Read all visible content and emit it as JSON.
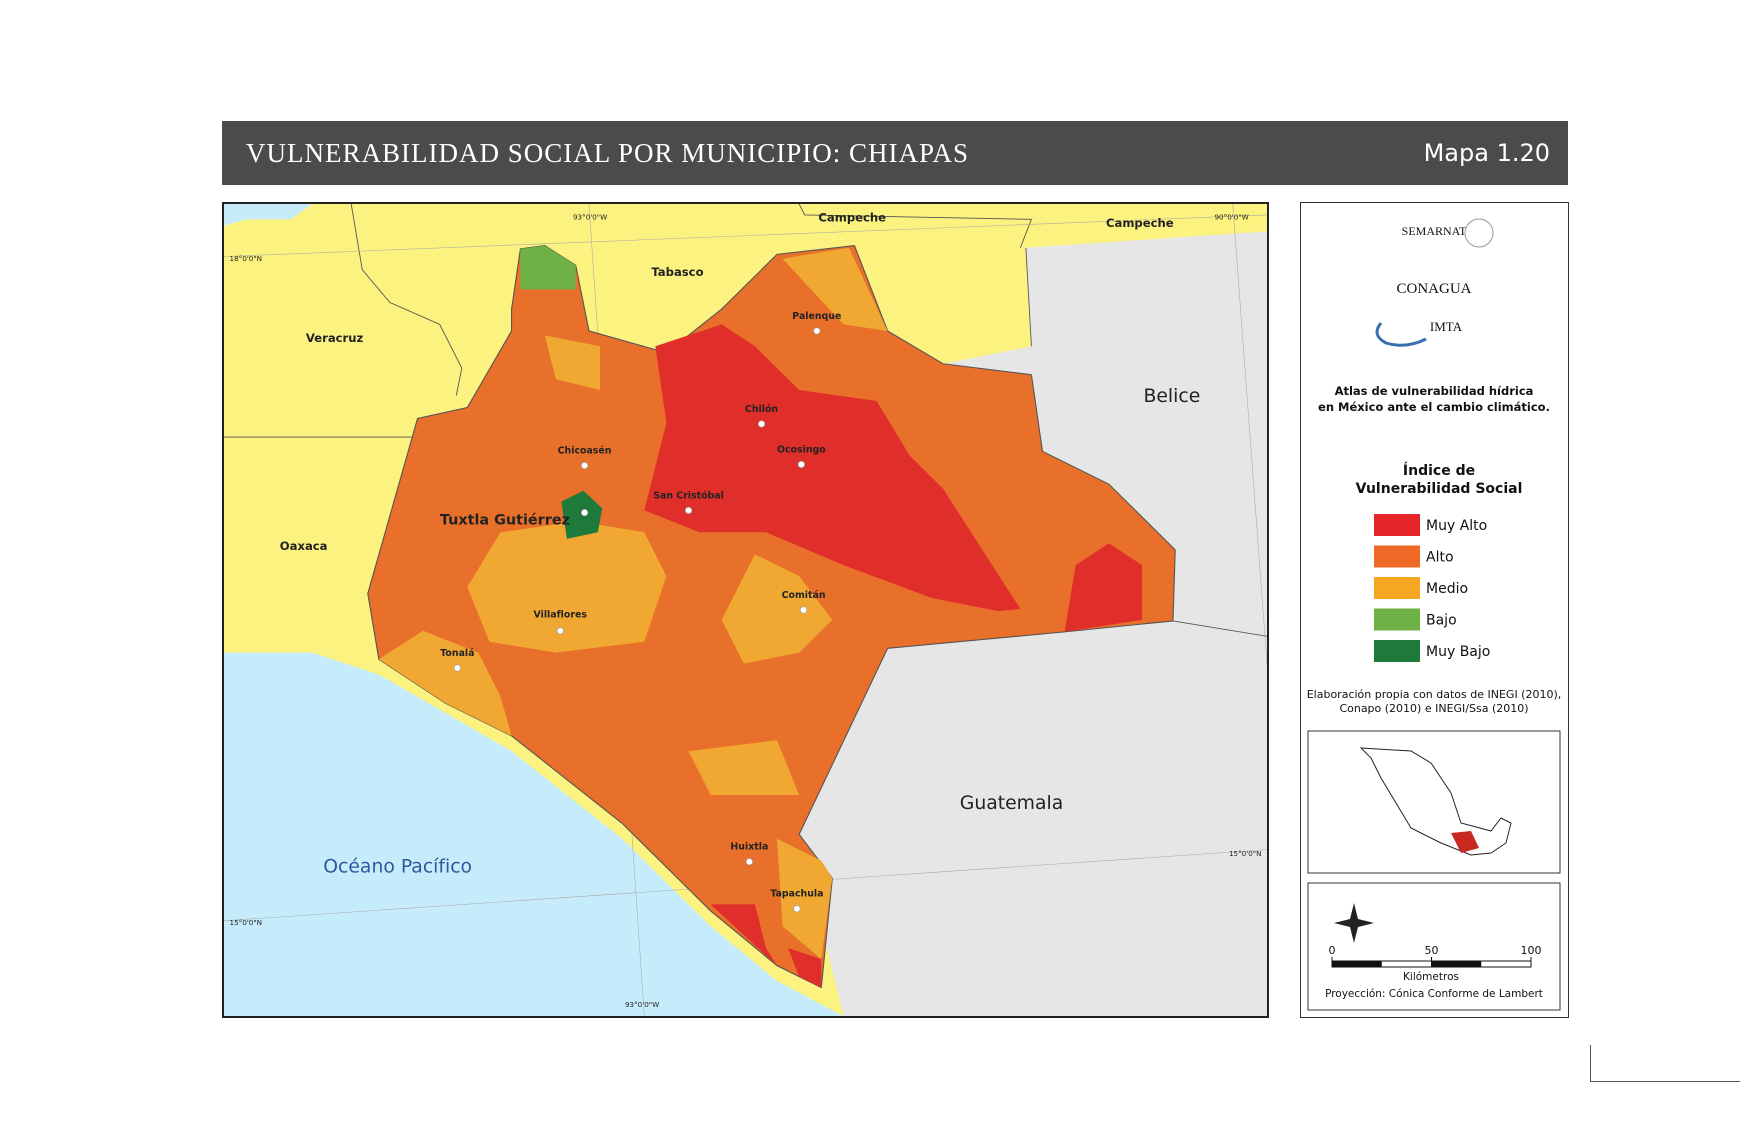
{
  "header": {
    "title": "VULNERABILIDAD SOCIAL POR MUNICIPIO: CHIAPAS",
    "map_number": "Mapa 1.20"
  },
  "map": {
    "regions": [
      "Campeche",
      "Campeche",
      "Tabasco",
      "Veracruz",
      "Belice",
      "Oaxaca",
      "Guatemala",
      "Océano Pacífico"
    ],
    "cities": [
      "Palenque",
      "Chilón",
      "Ocosingo",
      "Chicoasén",
      "San Cristóbal",
      "Tuxtla Gutiérrez",
      "Comitán",
      "Villaflores",
      "Tonalá",
      "Huixtla",
      "Tapachula"
    ],
    "coordinates": [
      "93°0'0\"W",
      "90°0'0\"W",
      "18°0'0\"N",
      "15°0'0\"N",
      "15°0'0\"N",
      "93°0'0\"W"
    ]
  },
  "panel": {
    "logos": [
      "SEMARNAT",
      "CONAGUA",
      "IMTA"
    ],
    "atlas_title": [
      "Atlas de vulnerabilidad  hídrica",
      "en México ante el cambio climático."
    ],
    "legend": {
      "title": [
        "Índice de",
        "Vulnerabilidad Social"
      ],
      "items": [
        {
          "label": "Muy Alto",
          "color": "#e42629"
        },
        {
          "label": "Alto",
          "color": "#ee6a26"
        },
        {
          "label": "Medio",
          "color": "#f6a623"
        },
        {
          "label": "Bajo",
          "color": "#6eb144"
        },
        {
          "label": "Muy Bajo",
          "color": "#1e7a3a"
        }
      ]
    },
    "source": [
      "Elaboración propia con datos de INEGI (2010),",
      "Conapo (2010) e INEGI/Ssa (2010)"
    ],
    "scale_bar": {
      "ticks": [
        0,
        50,
        100
      ],
      "unit": "Kilómetros"
    },
    "projection": "Proyección: Cónica Conforme de Lambert"
  }
}
